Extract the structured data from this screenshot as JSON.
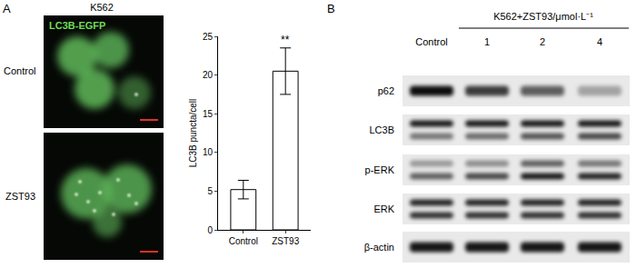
{
  "panel_labels": [
    "A",
    "B"
  ],
  "panel_a": {
    "cell_line": "K562",
    "stain": "LC3B-EGFP",
    "rows": [
      "Control",
      "ZST93"
    ]
  },
  "chart_data": {
    "type": "bar",
    "categories": [
      "Control",
      "ZST93"
    ],
    "values": [
      5.2,
      20.5
    ],
    "errors": [
      1.2,
      3.0
    ],
    "y_label": "LC3B puncta/cell",
    "ylim": [
      0,
      25
    ],
    "yticks": [
      0,
      5,
      10,
      15,
      20,
      25
    ],
    "color": "#ffffff",
    "grid": false,
    "annotations": [
      {
        "category": "ZST93",
        "text": "**"
      }
    ]
  },
  "panel_b": {
    "treatment": "K562+ZST93/μmol·L⁻¹",
    "lanes": [
      "Control",
      "1",
      "2",
      "4"
    ],
    "blots": [
      {
        "label": "p62",
        "bands": [
          [
            0.95,
            0.75,
            0.6,
            0.3
          ]
        ]
      },
      {
        "label": "LC3B",
        "bands": [
          [
            0.9,
            0.9,
            0.9,
            0.9
          ],
          [
            0.5,
            0.55,
            0.65,
            0.7
          ]
        ]
      },
      {
        "label": "p-ERK",
        "bands": [
          [
            0.35,
            0.4,
            0.6,
            0.5
          ],
          [
            0.6,
            0.7,
            0.9,
            0.85
          ]
        ]
      },
      {
        "label": "ERK",
        "bands": [
          [
            0.85,
            0.85,
            0.85,
            0.85
          ],
          [
            0.8,
            0.8,
            0.8,
            0.8
          ]
        ]
      },
      {
        "label": "β-actin",
        "bands": [
          [
            0.9,
            0.9,
            0.9,
            0.9
          ]
        ]
      }
    ]
  }
}
